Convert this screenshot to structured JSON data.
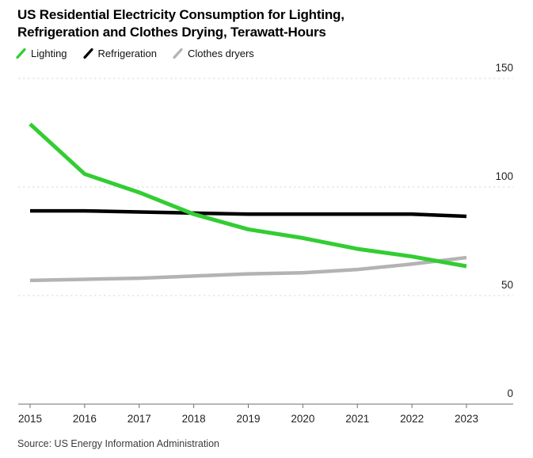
{
  "header": {
    "title_line1": "US Residential Electricity Consumption for Lighting,",
    "title_line2": "Refrigeration and Clothes Drying, Terawatt-Hours"
  },
  "legend": {
    "items": [
      {
        "label": "Lighting"
      },
      {
        "label": "Refrigeration"
      },
      {
        "label": "Clothes dryers"
      }
    ]
  },
  "footer": {
    "source": "Source: US Energy Information Administration"
  },
  "chart_data": {
    "type": "line",
    "title": "US Residential Electricity Consumption for Lighting, Refrigeration and Clothes Drying, Terawatt-Hours",
    "x": [
      2015,
      2016,
      2017,
      2018,
      2019,
      2020,
      2021,
      2022,
      2023
    ],
    "series": [
      {
        "name": "Lighting",
        "color": "#32cd32",
        "values": [
          129,
          106,
          97.5,
          87.5,
          80.5,
          76.5,
          71.5,
          68,
          63.5
        ]
      },
      {
        "name": "Refrigeration",
        "color": "#000000",
        "values": [
          89,
          89,
          88.5,
          88,
          87.5,
          87.5,
          87.5,
          87.5,
          86.5
        ]
      },
      {
        "name": "Clothes dryers",
        "color": "#b3b3b3",
        "values": [
          57,
          57.5,
          58,
          59,
          60,
          60.5,
          62,
          64.5,
          67.5
        ]
      }
    ],
    "xlabel": "",
    "ylabel": "Terawatt-Hours",
    "ylim": [
      0,
      150
    ],
    "y_ticks": [
      0,
      50,
      100,
      150
    ],
    "grid": "horizontal-dashed",
    "grid_color": "#d9d9d9",
    "axis_color": "#6f6f6f",
    "legend_position": "top-left",
    "y_axis_side": "right"
  }
}
